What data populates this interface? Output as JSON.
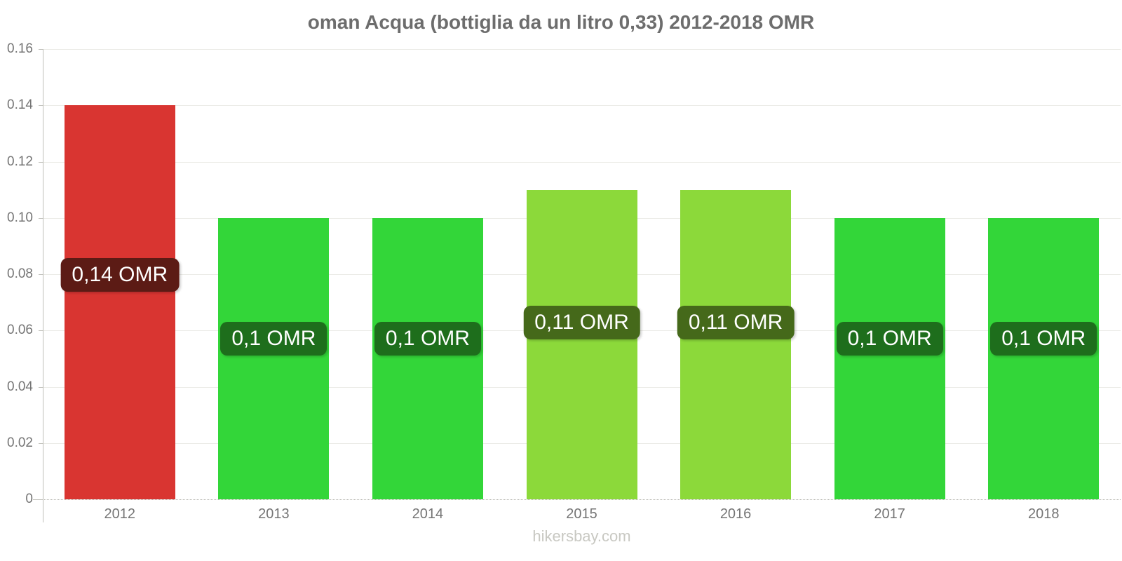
{
  "chart_data": {
    "type": "bar",
    "title": "oman Acqua (bottiglia da un litro 0,33) 2012-2018 OMR",
    "categories": [
      "2012",
      "2013",
      "2014",
      "2015",
      "2016",
      "2017",
      "2018"
    ],
    "values": [
      0.14,
      0.1,
      0.1,
      0.11,
      0.11,
      0.1,
      0.1
    ],
    "bar_labels": [
      "0,14 OMR",
      "0,1 OMR",
      "0,1 OMR",
      "0,11 OMR",
      "0,11 OMR",
      "0,1 OMR",
      "0,1 OMR"
    ],
    "bar_colors": [
      "#d93531",
      "#33d639",
      "#33d639",
      "#8cd93a",
      "#8cd93a",
      "#33d639",
      "#33d639"
    ],
    "bar_label_bg": [
      "#5c1b15",
      "#1e6e1c",
      "#1e6e1c",
      "#45691a",
      "#45691a",
      "#1e6e1c",
      "#1e6e1c"
    ],
    "xlabel": "",
    "ylabel": "",
    "ylim": [
      0,
      0.16
    ],
    "yticks": [
      "0",
      "0.02",
      "0.04",
      "0.06",
      "0.08",
      "0.10",
      "0.12",
      "0.14",
      "0.16"
    ],
    "grid": "horizontal",
    "legend": "none",
    "currency": "OMR"
  },
  "footer": {
    "text": "hikersbay.com"
  }
}
